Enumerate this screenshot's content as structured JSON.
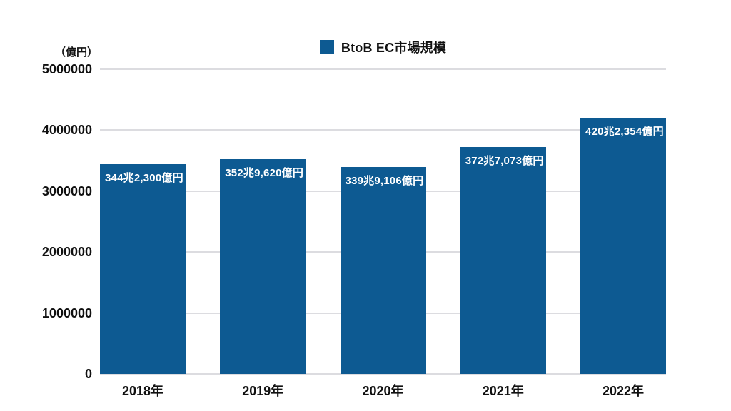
{
  "page": {
    "background_color": "#ffffff",
    "text_color": "#111111"
  },
  "legend": {
    "label": "BtoB EC市場規模",
    "swatch_color": "#0d5a92"
  },
  "chart_data": {
    "type": "bar",
    "title": "",
    "legend_label": "BtoB EC市場規模",
    "legend_position": "top",
    "unit_label": "（億円）",
    "categories": [
      "2018年",
      "2019年",
      "2020年",
      "2021年",
      "2022年"
    ],
    "values": [
      3442300,
      3529620,
      3399106,
      3727073,
      4202354
    ],
    "bar_value_labels": [
      "344兆2,300億円",
      "352兆9,620億円",
      "339兆9,106億円",
      "372兆7,073億円",
      "420兆2,354億円"
    ],
    "ylim": [
      0,
      5000000
    ],
    "yticks": [
      0,
      1000000,
      2000000,
      3000000,
      4000000,
      5000000
    ],
    "grid": true,
    "bar_color": "#0d5a92",
    "bar_label_color": "#ffffff",
    "gridline_color": "#dcdce0",
    "axis_text_color": "#111111"
  }
}
